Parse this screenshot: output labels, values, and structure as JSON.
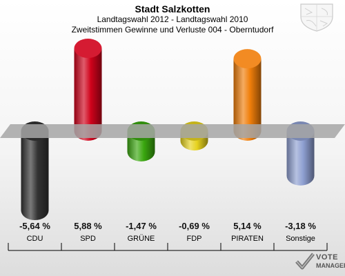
{
  "header": {
    "title": "Stadt Salzkotten",
    "subtitle1": "Landtagswahl 2012 - Landtagswahl 2010",
    "subtitle2": "Zweitstimmen Gewinne und Verluste 004 - Oberntudorf"
  },
  "logo": {
    "line1": "VOTE",
    "line2": "MANAGER"
  },
  "chart_data": {
    "type": "bar",
    "title": "Stadt Salzkotten",
    "subtitle": "Landtagswahl 2012 - Landtagswahl 2010 / Zweitstimmen Gewinne und Verluste 004 - Oberntudorf",
    "categories": [
      "CDU",
      "SPD",
      "GRÜNE",
      "FDP",
      "PIRATEN",
      "Sonstige"
    ],
    "values": [
      -5.64,
      5.88,
      -1.47,
      -0.69,
      5.14,
      -3.18
    ],
    "labels": [
      "-5,64 %",
      "5,88 %",
      "-1,47 %",
      "-0,69 %",
      "5,14 %",
      "-3,18 %"
    ],
    "colors": [
      "#333333",
      "#d0021b",
      "#3aa70f",
      "#e6d21e",
      "#f07e0a",
      "#8e9fd1"
    ],
    "ylim": [
      -7,
      7
    ],
    "grid": false,
    "legend": "none"
  }
}
